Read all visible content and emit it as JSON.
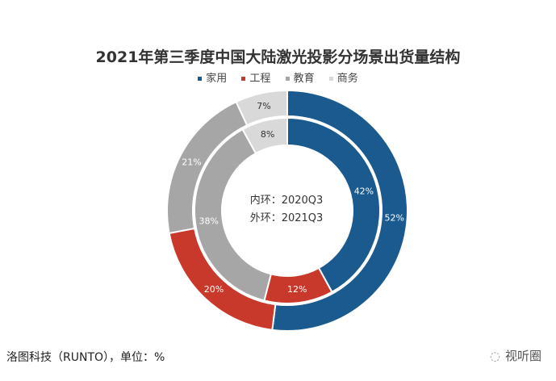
{
  "chart_data": {
    "type": "pie",
    "subtype": "nested-donut",
    "title": "2021年第三季度中国大陆激光投影分场景出货量结构",
    "legend": [
      "家用",
      "工程",
      "教育",
      "商务"
    ],
    "legend_position": "top",
    "colors": [
      "#1a5a8e",
      "#c9392b",
      "#a6a6a6",
      "#d9d9d9"
    ],
    "label_colors": [
      "#ffffff",
      "#ffffff",
      "#ffffff",
      "#333333"
    ],
    "center_text": [
      "内环：2020Q3",
      "外环：2021Q3"
    ],
    "series": [
      {
        "name": "2021Q3",
        "ring": "outer",
        "values": [
          52,
          20,
          21,
          7
        ],
        "labels": [
          "52%",
          "20%",
          "21%",
          "7%"
        ]
      },
      {
        "name": "2020Q3",
        "ring": "inner",
        "values": [
          42,
          12,
          38,
          8
        ],
        "labels": [
          "42%",
          "12%",
          "38%",
          "8%"
        ]
      }
    ]
  },
  "footer": {
    "source": "洛图科技（RUNTO），单位：%",
    "brand": "视听圈"
  }
}
